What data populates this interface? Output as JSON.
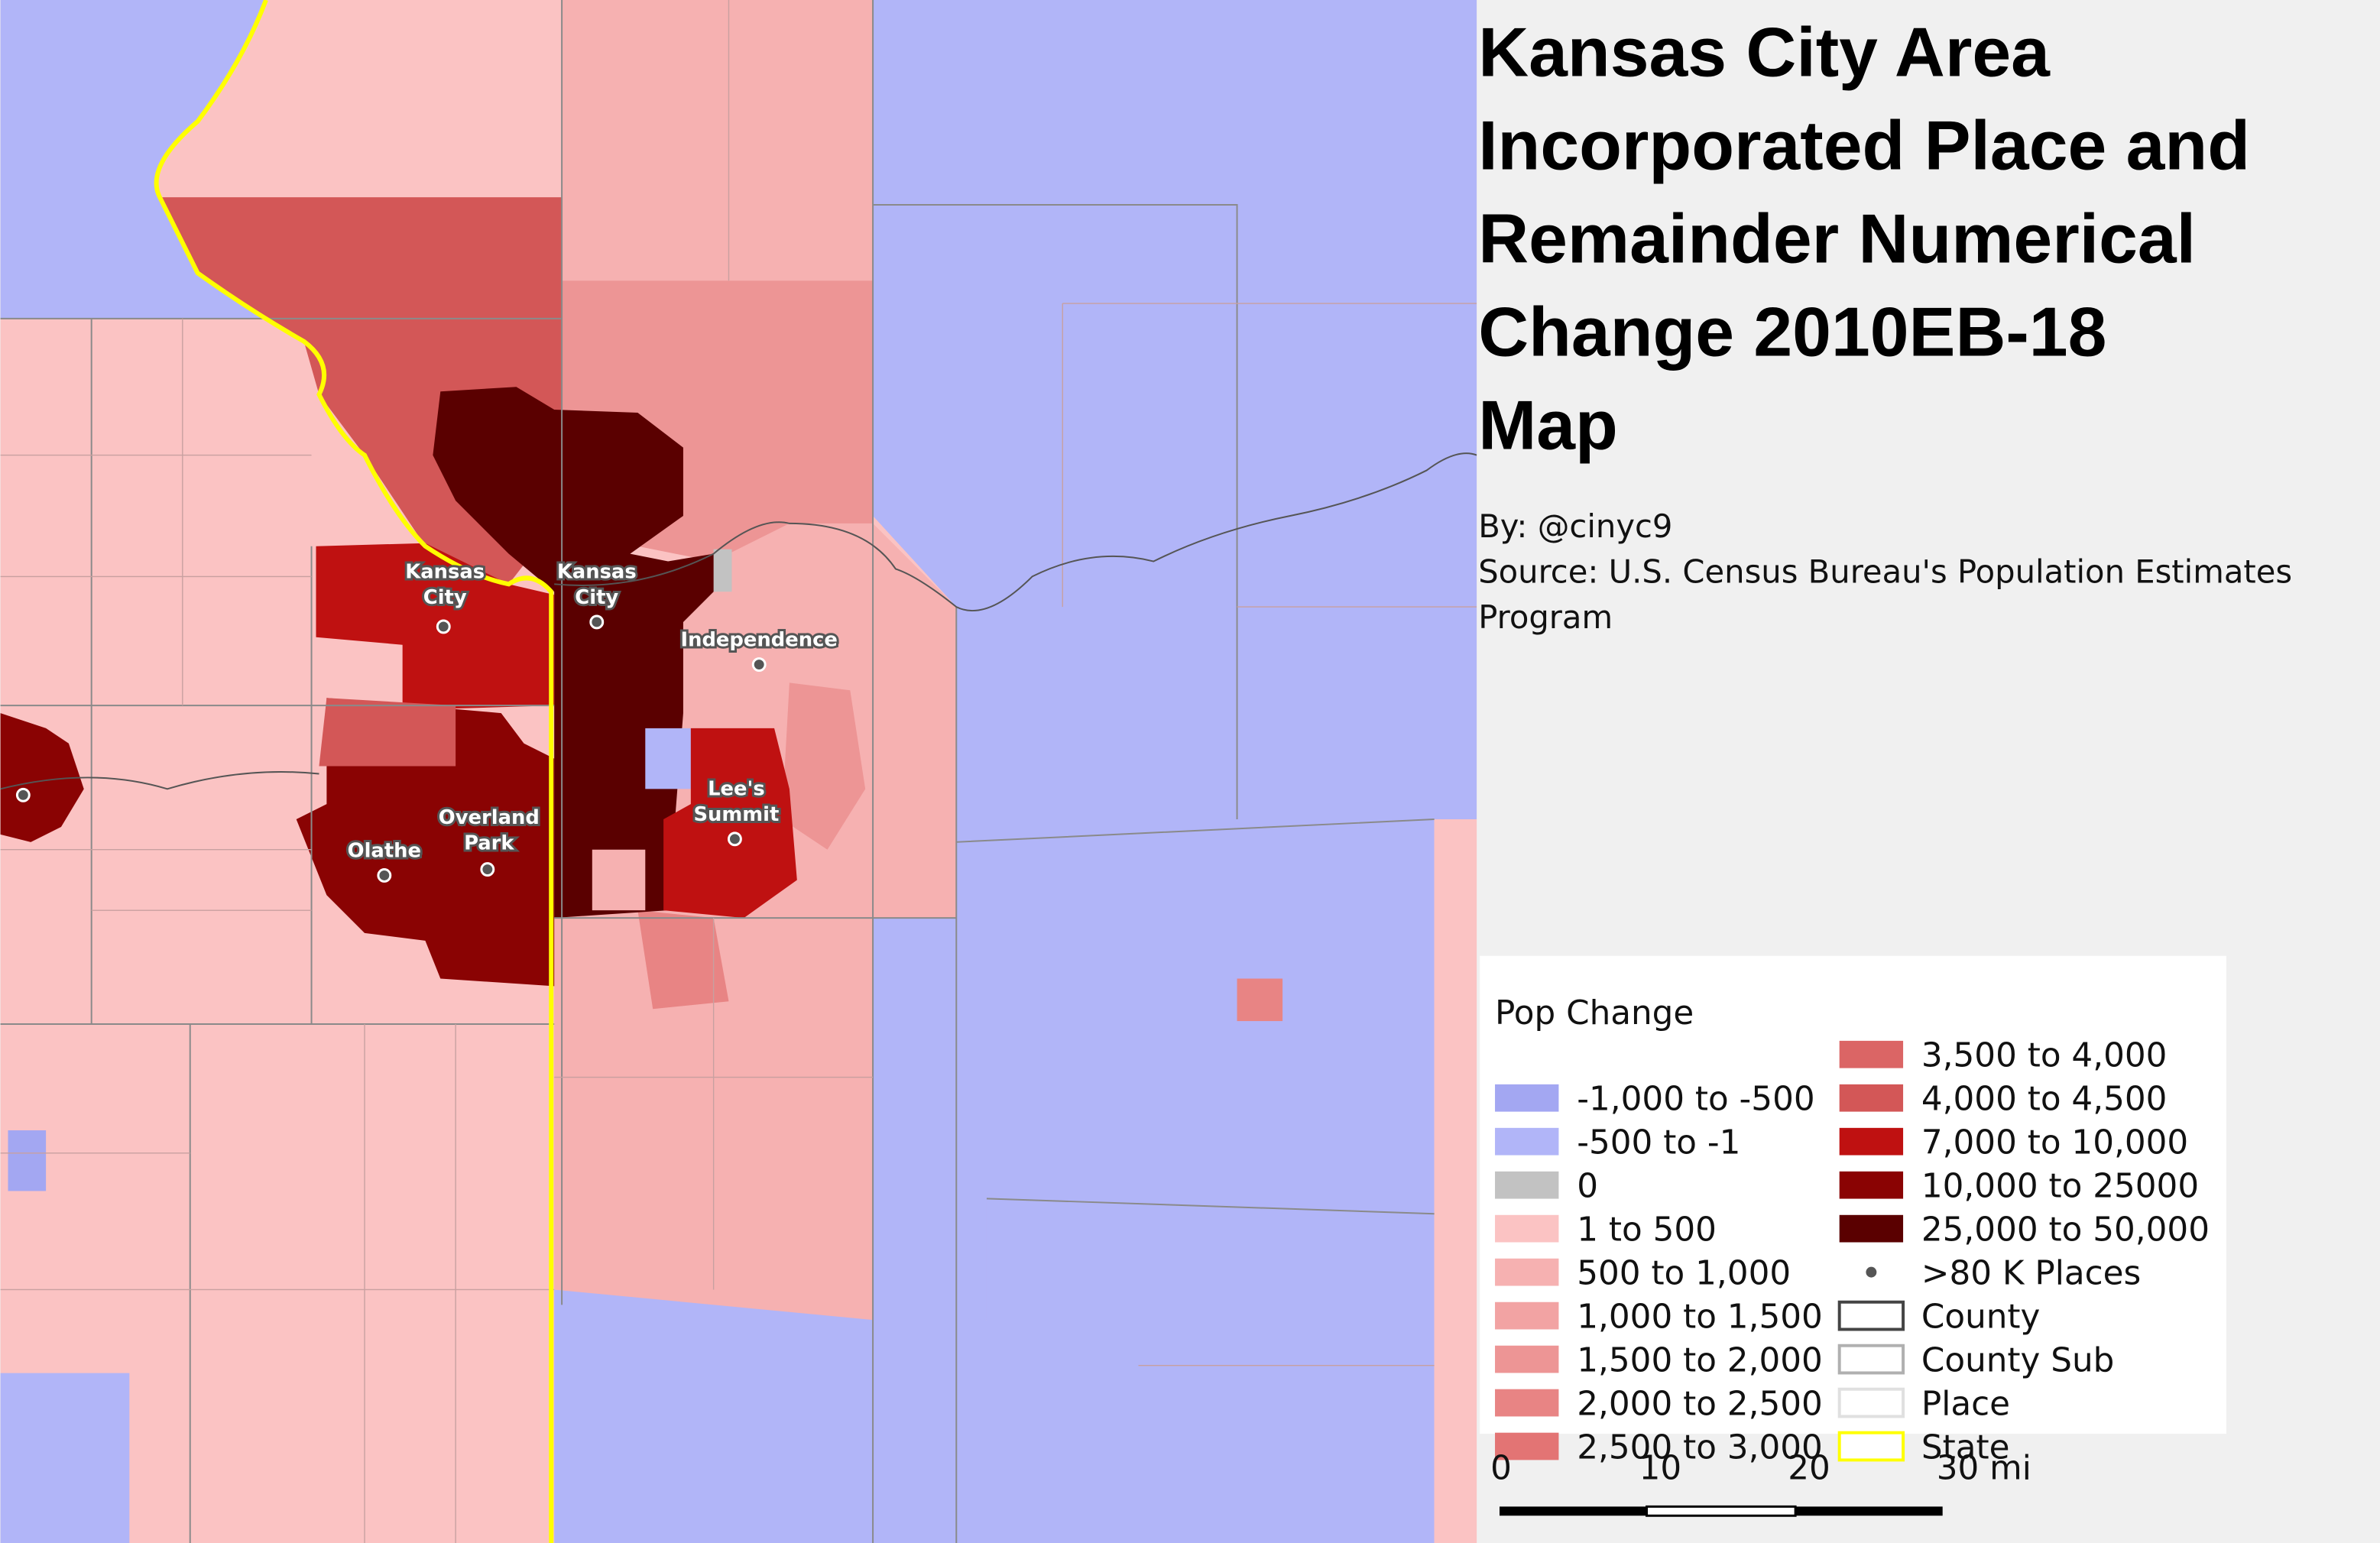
{
  "title_lines": [
    "Kansas City Area",
    "Incorporated Place and",
    "Remainder Numerical",
    "Change 2010EB-18",
    "Map"
  ],
  "byline": "By: @cinyc9",
  "source_lines": [
    "Source: U.S. Census Bureau's Population Estimates",
    "Program"
  ],
  "place_labels": [
    {
      "lines": [
        "Kansas",
        "City"
      ]
    },
    {
      "lines": [
        "Kansas",
        "City"
      ]
    },
    {
      "lines": [
        "Independence"
      ]
    },
    {
      "lines": [
        "Lee's",
        "Summit"
      ]
    },
    {
      "lines": [
        "Overland",
        "Park"
      ]
    },
    {
      "lines": [
        "Olathe"
      ]
    }
  ],
  "legend": {
    "title": "Pop Change",
    "items": [
      {
        "label": "-1,000 to -500",
        "symbol": "fill",
        "color": "#a3a7f2"
      },
      {
        "label": "-500 to -1",
        "symbol": "fill",
        "color": "#b1b5f8"
      },
      {
        "label": "0",
        "symbol": "fill",
        "color": "#c2c2c2"
      },
      {
        "label": "1 to 500",
        "symbol": "fill",
        "color": "#fbc3c3"
      },
      {
        "label": "500 to 1,000",
        "symbol": "fill",
        "color": "#f6b1b1"
      },
      {
        "label": "1,000 to 1,500",
        "symbol": "fill",
        "color": "#f2a3a3"
      },
      {
        "label": "1,500 to 2,000",
        "symbol": "fill",
        "color": "#ed9595"
      },
      {
        "label": "2,000 to 2,500",
        "symbol": "fill",
        "color": "#e88484"
      },
      {
        "label": "2,500 to 3,000",
        "symbol": "fill",
        "color": "#e37474"
      },
      {
        "label": "3,500 to 4,000",
        "symbol": "fill",
        "color": "#db6565"
      },
      {
        "label": "4,000 to 4,500",
        "symbol": "fill",
        "color": "#d35757"
      },
      {
        "label": "7,000 to 10,000",
        "symbol": "fill",
        "color": "#bf1111"
      },
      {
        "label": "10,000 to 25000",
        "symbol": "fill",
        "color": "#8a0303"
      },
      {
        "label": "25,000 to 50,000",
        "symbol": "fill",
        "color": "#5a0000"
      },
      {
        "label": ">80 K Places",
        "symbol": "point",
        "color": "#555555"
      },
      {
        "label": "County",
        "symbol": "outline",
        "color": "#444444"
      },
      {
        "label": "County Sub",
        "symbol": "outline",
        "color": "#b0b0b0"
      },
      {
        "label": "Place",
        "symbol": "outline",
        "color": "#e0e0e0"
      },
      {
        "label": "State",
        "symbol": "outline",
        "color": "#ffff00"
      }
    ]
  },
  "scale_bar": {
    "labels": [
      "0",
      "10",
      "20",
      "30 mi"
    ]
  }
}
